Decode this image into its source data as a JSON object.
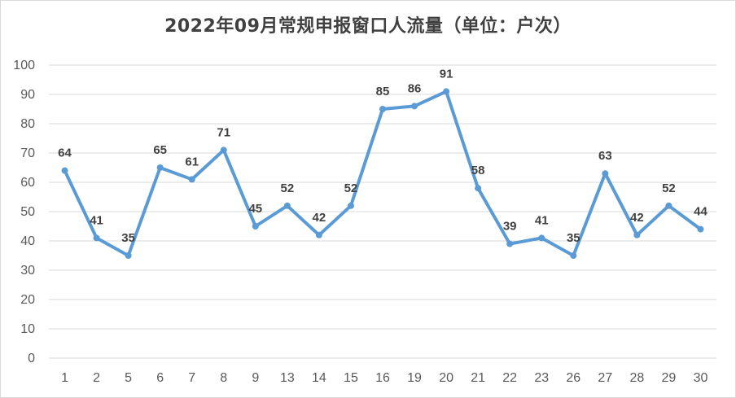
{
  "chart_data": {
    "type": "line",
    "title": "2022年09月常规申报窗口人流量（单位：户次）",
    "xlabel": "",
    "ylabel": "",
    "ylim": [
      0,
      100
    ],
    "ytick_step": 10,
    "grid": true,
    "categories": [
      "1",
      "2",
      "5",
      "6",
      "7",
      "8",
      "9",
      "13",
      "14",
      "15",
      "16",
      "19",
      "20",
      "21",
      "22",
      "23",
      "26",
      "27",
      "28",
      "29",
      "30"
    ],
    "series": [
      {
        "values": [
          64,
          41,
          35,
          65,
          61,
          71,
          45,
          52,
          42,
          52,
          85,
          86,
          91,
          58,
          39,
          41,
          35,
          63,
          42,
          52,
          44
        ]
      }
    ],
    "line_color": "#5b9bd5",
    "grid_color": "#d9d9d9",
    "data_labels": true
  }
}
